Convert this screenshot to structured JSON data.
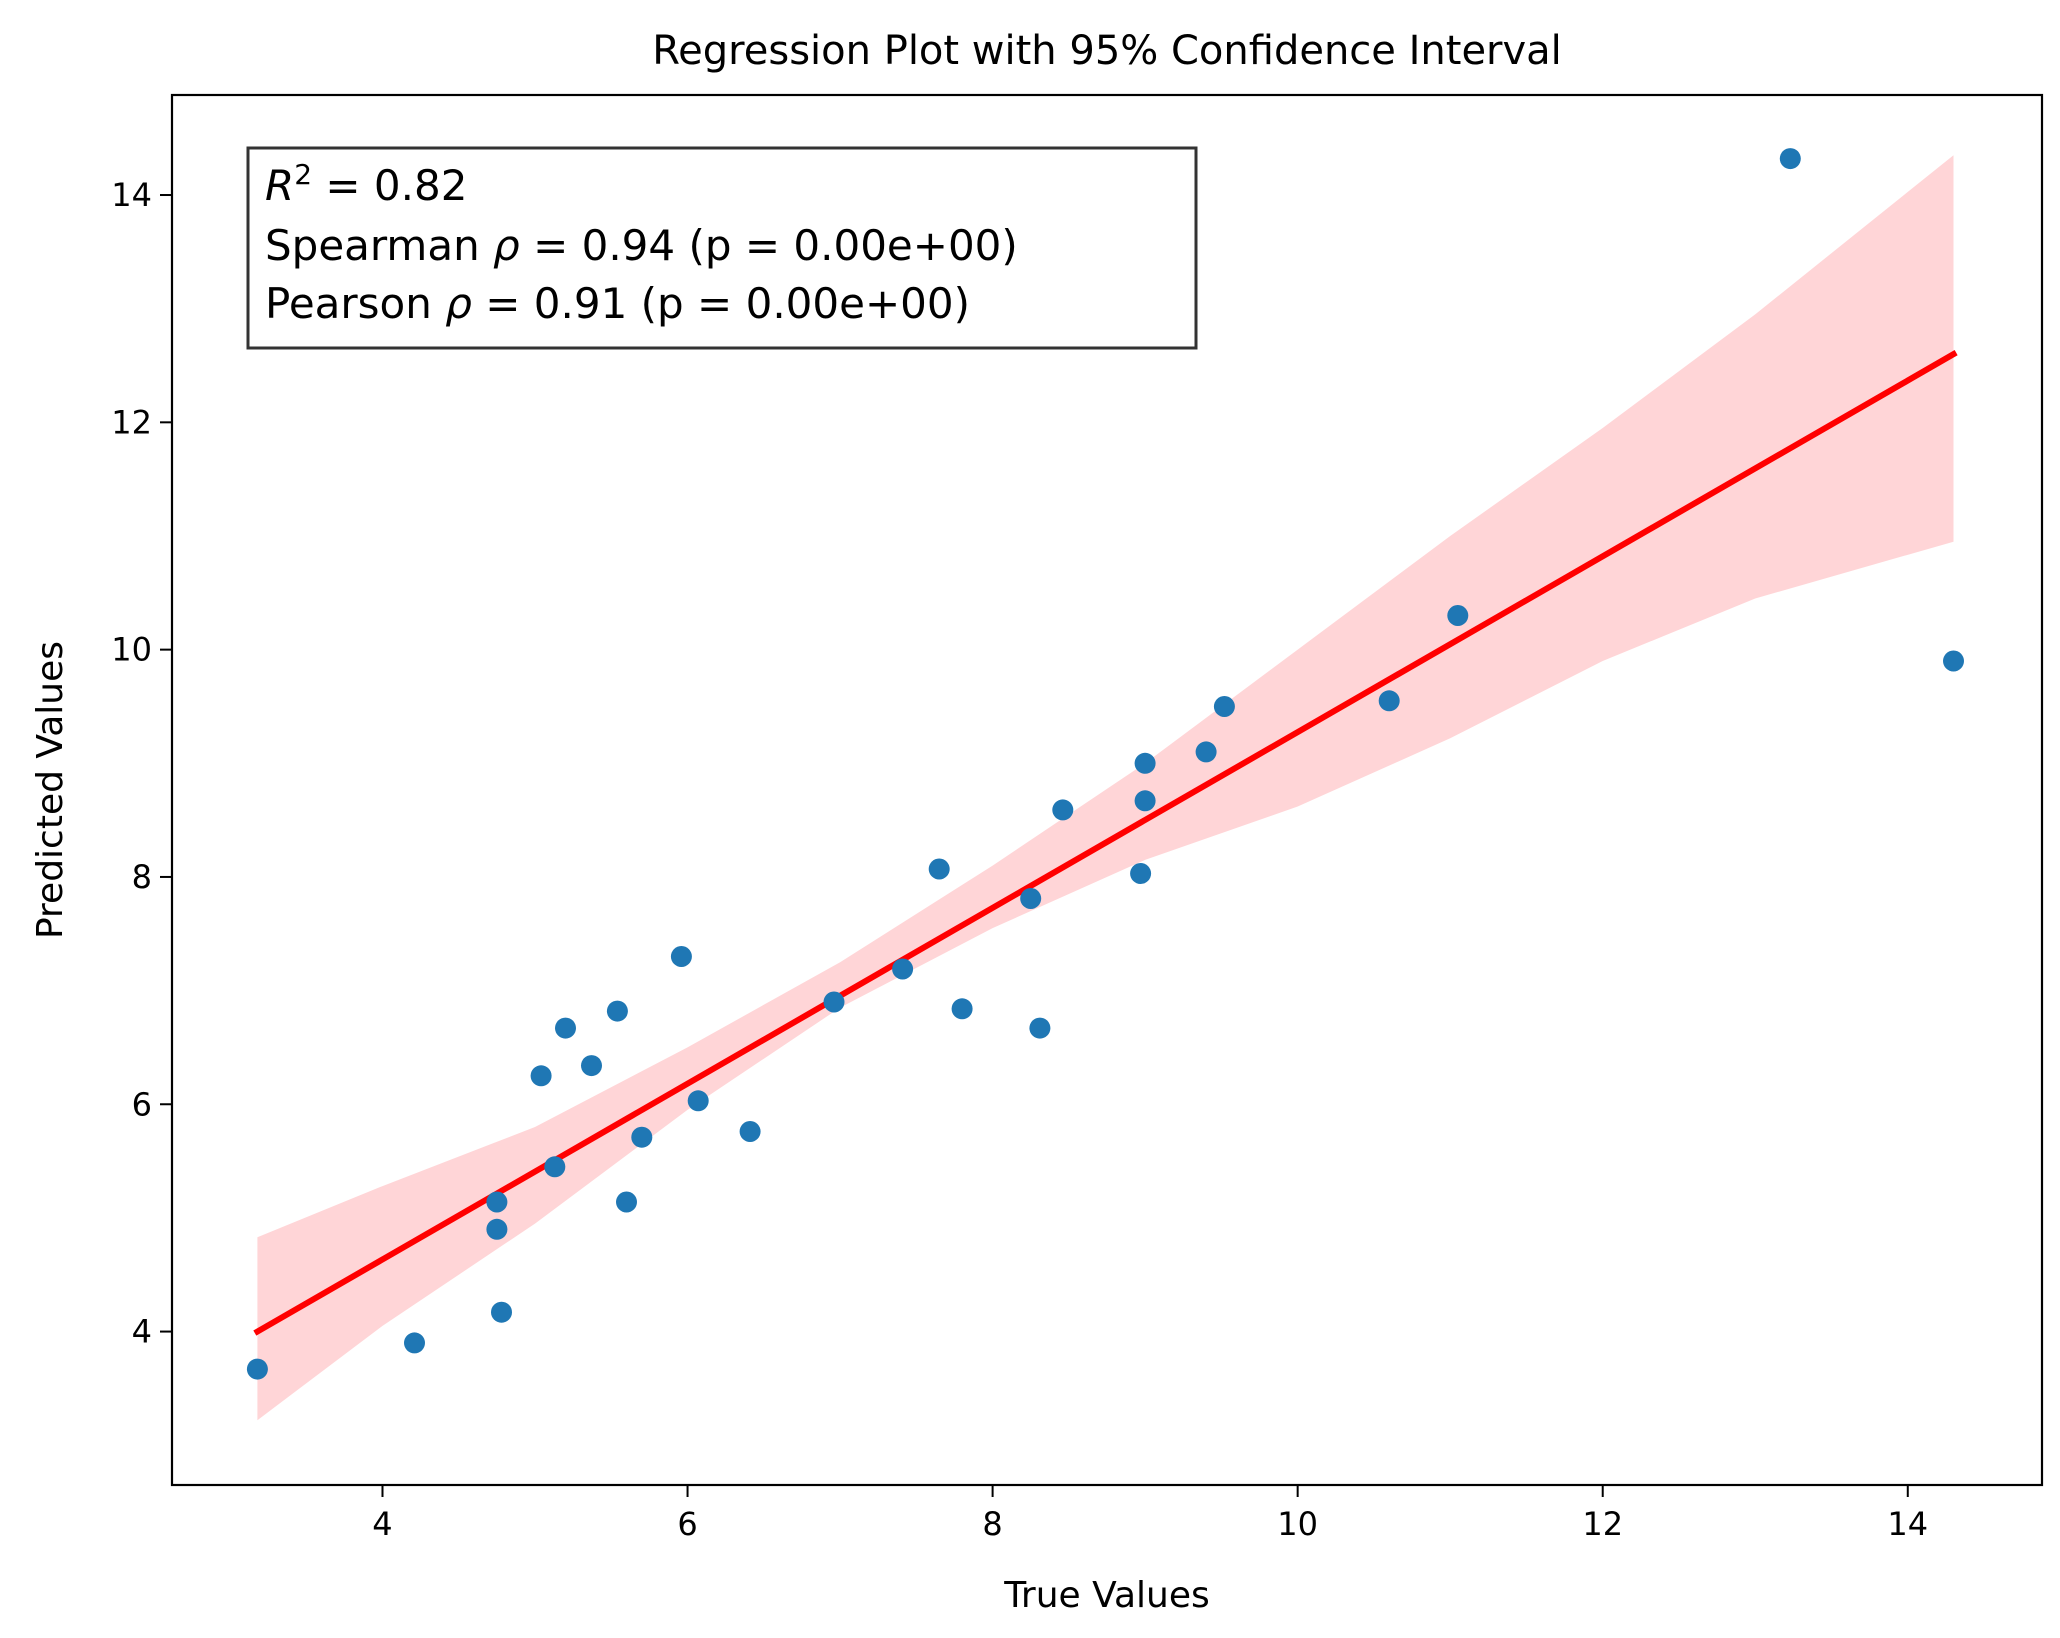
{
  "chart_data": {
    "type": "scatter",
    "title": "Regression Plot with 95% Confidence Interval",
    "xlabel": "True Values",
    "ylabel": "Predicted Values",
    "xlim": [
      2.62,
      14.88
    ],
    "ylim": [
      2.65,
      14.88
    ],
    "xticks": [
      4,
      6,
      8,
      10,
      12,
      14
    ],
    "yticks": [
      4,
      6,
      8,
      10,
      12,
      14
    ],
    "grid": false,
    "colors": {
      "points": "#1f77b4",
      "line": "#ff0000",
      "band": "#ffd5d7"
    },
    "points": [
      [
        3.18,
        3.67
      ],
      [
        4.21,
        3.9
      ],
      [
        4.75,
        5.14
      ],
      [
        4.75,
        4.9
      ],
      [
        4.78,
        4.17
      ],
      [
        5.04,
        6.25
      ],
      [
        5.13,
        5.45
      ],
      [
        5.2,
        6.67
      ],
      [
        5.37,
        6.34
      ],
      [
        5.54,
        6.82
      ],
      [
        5.6,
        5.14
      ],
      [
        5.7,
        5.71
      ],
      [
        5.96,
        7.3
      ],
      [
        6.07,
        6.03
      ],
      [
        6.41,
        5.76
      ],
      [
        6.96,
        6.9
      ],
      [
        7.41,
        7.19
      ],
      [
        7.65,
        8.07
      ],
      [
        7.8,
        6.84
      ],
      [
        8.25,
        7.81
      ],
      [
        8.31,
        6.67
      ],
      [
        8.46,
        8.59
      ],
      [
        8.97,
        8.03
      ],
      [
        9.0,
        9.0
      ],
      [
        9.0,
        8.67
      ],
      [
        9.4,
        9.1
      ],
      [
        9.52,
        9.5
      ],
      [
        10.6,
        9.55
      ],
      [
        11.05,
        10.3
      ],
      [
        13.23,
        14.32
      ],
      [
        14.3,
        9.9
      ]
    ],
    "regression_line": {
      "x": [
        3.18,
        14.3
      ],
      "y": [
        4.0,
        12.6
      ]
    },
    "confidence_band": {
      "x": [
        3.18,
        4.0,
        5.0,
        6.0,
        7.0,
        8.0,
        9.0,
        10.0,
        11.0,
        12.0,
        13.0,
        14.3
      ],
      "upper": [
        4.83,
        5.28,
        5.8,
        6.5,
        7.25,
        8.1,
        9.0,
        10.0,
        11.0,
        11.95,
        12.95,
        14.35
      ],
      "lower": [
        3.22,
        4.05,
        4.95,
        5.95,
        6.85,
        7.55,
        8.15,
        8.62,
        9.22,
        9.9,
        10.45,
        10.95
      ]
    },
    "annotation": {
      "r2_label": "R",
      "r2_sup": "2",
      "r2_value": " = 0.82",
      "spearman_prefix": "Spearman ",
      "spearman_symbol": "ρ",
      "spearman_value": " = 0.94  (p = 0.00e+00)",
      "pearson_prefix": "Pearson ",
      "pearson_symbol": "ρ",
      "pearson_value": " = 0.91  (p = 0.00e+00)"
    }
  }
}
